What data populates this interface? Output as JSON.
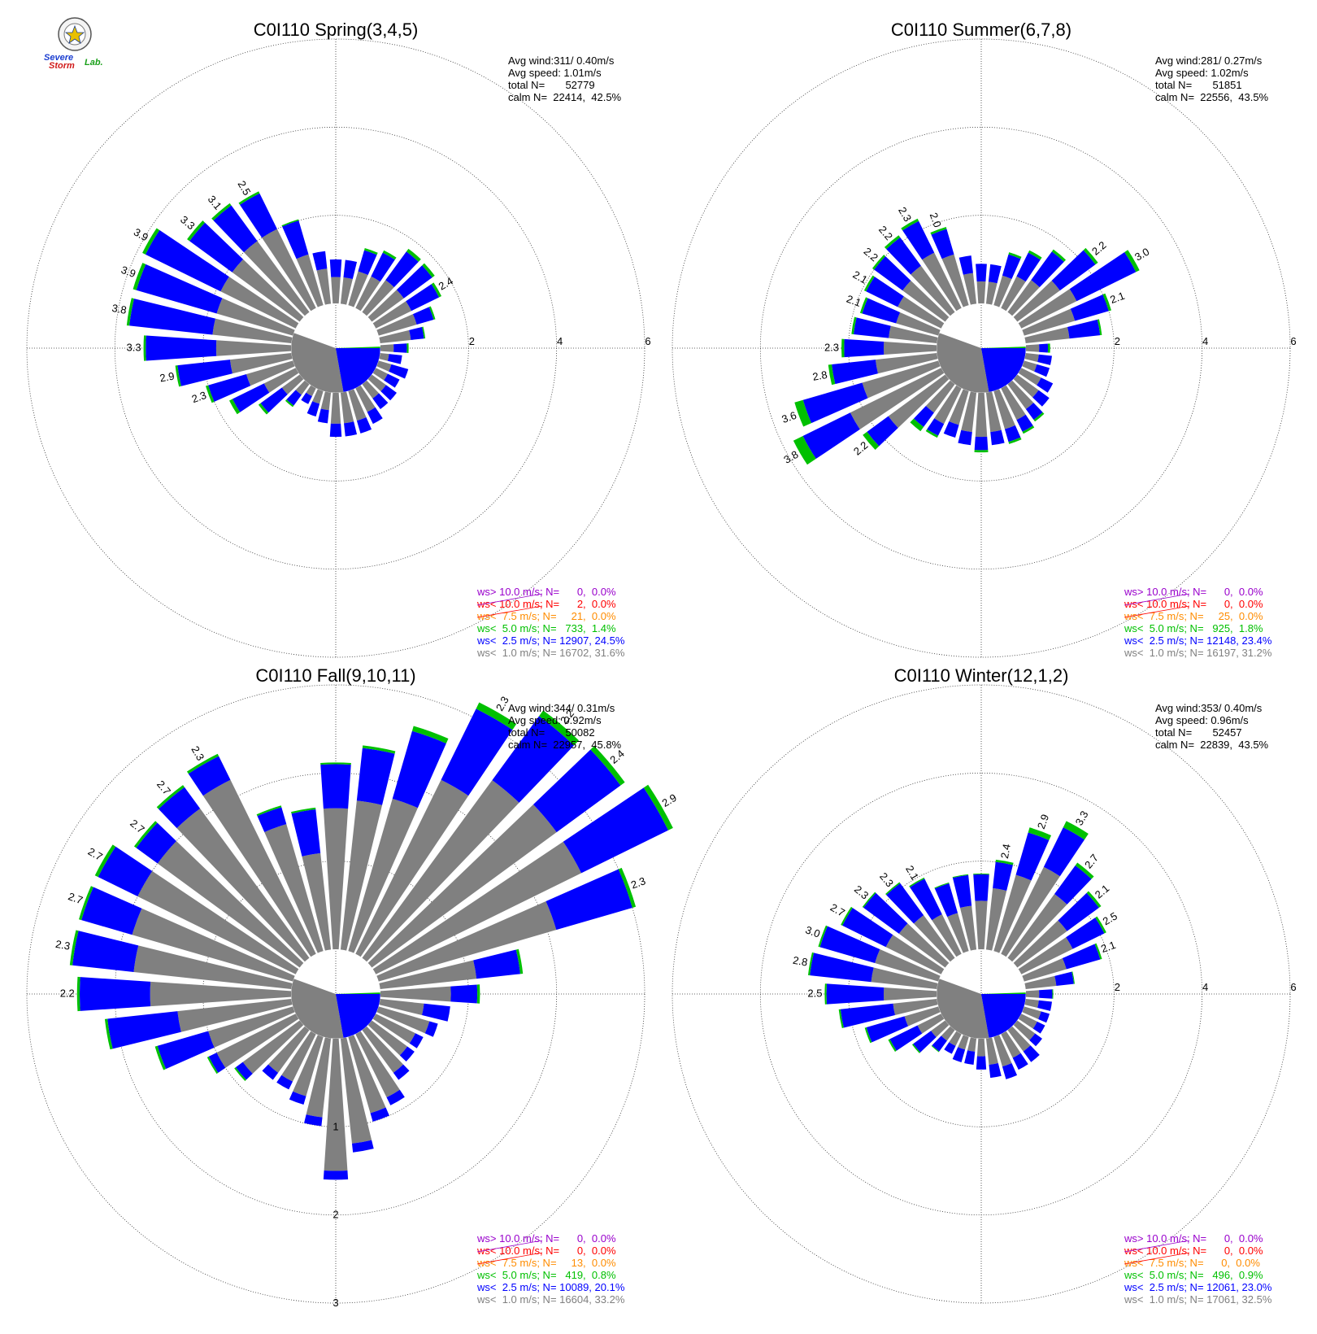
{
  "logo": {
    "line1": "Severe",
    "line2": "Storm",
    "line3": "Lab."
  },
  "colors": {
    "calm": "#808080",
    "ws1": "#808080",
    "ws25": "#0000ff",
    "ws5": "#00c000",
    "ws75": "#ff8c00",
    "ws10": "#ff0000",
    "ws10p": "#9900cc"
  },
  "chart_data": [
    {
      "type": "wind-rose",
      "title": "C0I110 Spring(3,4,5)",
      "stats": {
        "avg_wind": "Avg wind:311/ 0.40m/s",
        "avg_speed": "Avg speed: 1.01m/s",
        "total": "total N=       52779",
        "calm": "calm N=  22414,  42.5%"
      },
      "legend": [
        {
          "text": "ws> 10.0 m/s; N=      0,  0.0%",
          "color": "#9900cc"
        },
        {
          "text": "ws< 10.0 m/s; N=      2,  0.0%",
          "color": "#ff0000"
        },
        {
          "text": "ws<  7.5 m/s; N=     21,  0.0%",
          "color": "#ff8c00"
        },
        {
          "text": "ws<  5.0 m/s; N=   733,  1.4%",
          "color": "#00c000"
        },
        {
          "text": "ws<  2.5 m/s; N= 12907, 24.5%",
          "color": "#0000ff"
        },
        {
          "text": "ws<  1.0 m/s; N= 16702, 31.6%",
          "color": "#808080"
        }
      ],
      "rmax": 6,
      "ring_ticks": [
        "2",
        "4",
        "6"
      ],
      "calm_pct": 42.5,
      "directions": [
        0,
        10,
        20,
        30,
        40,
        50,
        60,
        70,
        80,
        90,
        100,
        110,
        120,
        130,
        140,
        150,
        160,
        170,
        180,
        190,
        200,
        210,
        220,
        230,
        240,
        250,
        260,
        270,
        280,
        290,
        300,
        310,
        320,
        330,
        340,
        350
      ],
      "ws1": [
        0.6,
        0.6,
        0.8,
        0.8,
        0.9,
        0.9,
        0.9,
        0.9,
        0.7,
        0.3,
        0.2,
        0.3,
        0.3,
        0.4,
        0.4,
        0.6,
        0.7,
        0.7,
        0.7,
        0.4,
        0.3,
        0.2,
        0.3,
        0.5,
        0.8,
        1.1,
        1.4,
        1.7,
        1.8,
        1.8,
        1.9,
        1.9,
        2.0,
        2.0,
        1.2,
        0.8
      ],
      "ws25": [
        0.4,
        0.4,
        0.5,
        0.6,
        0.8,
        0.8,
        0.7,
        0.4,
        0.3,
        0.3,
        0.3,
        0.4,
        0.3,
        0.3,
        0.3,
        0.3,
        0.3,
        0.3,
        0.3,
        0.3,
        0.3,
        0.2,
        0.3,
        0.6,
        0.8,
        0.9,
        1.2,
        1.6,
        1.9,
        1.9,
        1.9,
        1.2,
        1.0,
        0.9,
        0.8,
        0.4
      ],
      "ws5": [
        0,
        0,
        0.05,
        0.06,
        0.08,
        0.07,
        0.06,
        0.04,
        0.03,
        0.04,
        0,
        0,
        0,
        0,
        0,
        0,
        0,
        0,
        0,
        0,
        0,
        0,
        0.04,
        0.06,
        0.08,
        0.06,
        0.05,
        0.05,
        0.06,
        0.08,
        0.08,
        0.07,
        0.06,
        0.05,
        0.03,
        0
      ],
      "max_labels": [
        {
          "dir": 60,
          "text": "2.4"
        },
        {
          "dir": 330,
          "text": "2.5"
        },
        {
          "dir": 320,
          "text": "3.1"
        },
        {
          "dir": 310,
          "text": "3.3"
        },
        {
          "dir": 300,
          "text": "3.9"
        },
        {
          "dir": 290,
          "text": "3.9"
        },
        {
          "dir": 280,
          "text": "3.8"
        },
        {
          "dir": 270,
          "text": "3.3"
        },
        {
          "dir": 260,
          "text": "2.9"
        },
        {
          "dir": 250,
          "text": "2.3"
        }
      ]
    },
    {
      "type": "wind-rose",
      "title": "C0I110 Summer(6,7,8)",
      "stats": {
        "avg_wind": "Avg wind:281/ 0.27m/s",
        "avg_speed": "Avg speed: 1.02m/s",
        "total": "total N=       51851",
        "calm": "calm N=  22556,  43.5%"
      },
      "legend": [
        {
          "text": "ws> 10.0 m/s; N=      0,  0.0%",
          "color": "#9900cc"
        },
        {
          "text": "ws< 10.0 m/s; N=      0,  0.0%",
          "color": "#ff0000"
        },
        {
          "text": "ws<  7.5 m/s; N=     25,  0.0%",
          "color": "#ff8c00"
        },
        {
          "text": "ws<  5.0 m/s; N=   925,  1.8%",
          "color": "#00c000"
        },
        {
          "text": "ws<  2.5 m/s; N= 12148, 23.4%",
          "color": "#0000ff"
        },
        {
          "text": "ws<  1.0 m/s; N= 16197, 31.2%",
          "color": "#808080"
        }
      ],
      "rmax": 6,
      "ring_ticks": [
        "2",
        "4",
        "6"
      ],
      "calm_pct": 43.5,
      "directions": [
        0,
        10,
        20,
        30,
        40,
        50,
        60,
        70,
        80,
        90,
        100,
        110,
        120,
        130,
        140,
        150,
        160,
        170,
        180,
        190,
        200,
        210,
        220,
        230,
        240,
        250,
        260,
        270,
        280,
        290,
        300,
        310,
        320,
        330,
        340,
        350
      ],
      "ws1": [
        0.5,
        0.5,
        0.7,
        0.8,
        0.9,
        1.2,
        1.4,
        1.2,
        1.0,
        0.3,
        0.3,
        0.3,
        0.5,
        0.6,
        0.7,
        0.8,
        0.9,
        0.9,
        1.0,
        0.9,
        0.8,
        0.9,
        0.8,
        1.6,
        2.3,
        1.8,
        1.4,
        1.2,
        1.1,
        1.0,
        1.1,
        1.2,
        1.3,
        1.4,
        1.2,
        0.7
      ],
      "ws25": [
        0.4,
        0.4,
        0.5,
        0.6,
        0.8,
        1.0,
        1.5,
        0.8,
        0.7,
        0.2,
        0.3,
        0.3,
        0.3,
        0.3,
        0.3,
        0.3,
        0.3,
        0.3,
        0.3,
        0.3,
        0.3,
        0.3,
        0.4,
        0.6,
        1.2,
        1.4,
        1.0,
        0.9,
        0.8,
        0.8,
        0.8,
        0.8,
        0.8,
        0.8,
        0.6,
        0.4
      ],
      "ws5": [
        0,
        0,
        0.05,
        0.06,
        0.06,
        0.07,
        0.09,
        0.06,
        0.04,
        0.05,
        0,
        0,
        0,
        0,
        0.05,
        0.05,
        0.05,
        0,
        0.05,
        0,
        0,
        0.05,
        0.12,
        0.12,
        0.24,
        0.2,
        0.08,
        0.06,
        0.05,
        0.05,
        0.05,
        0.05,
        0.06,
        0.06,
        0.05,
        0
      ],
      "max_labels": [
        {
          "dir": 50,
          "text": "2.2"
        },
        {
          "dir": 60,
          "text": "3.0"
        },
        {
          "dir": 70,
          "text": "2.1"
        },
        {
          "dir": 340,
          "text": "2.0"
        },
        {
          "dir": 330,
          "text": "2.3"
        },
        {
          "dir": 320,
          "text": "2.2"
        },
        {
          "dir": 310,
          "text": "2.2"
        },
        {
          "dir": 300,
          "text": "2.1"
        },
        {
          "dir": 290,
          "text": "2.1"
        },
        {
          "dir": 270,
          "text": "2.3"
        },
        {
          "dir": 260,
          "text": "2.8"
        },
        {
          "dir": 250,
          "text": "3.6"
        },
        {
          "dir": 240,
          "text": "3.8"
        },
        {
          "dir": 230,
          "text": "2.2"
        }
      ]
    },
    {
      "type": "wind-rose",
      "title": "C0I110 Fall(9,10,11)",
      "stats": {
        "avg_wind": "Avg wind:344/ 0.31m/s",
        "avg_speed": "Avg speed: 0.92m/s",
        "total": "total N=       50082",
        "calm": "calm N=  22957,  45.8%"
      },
      "legend": [
        {
          "text": "ws> 10.0 m/s; N=      0,  0.0%",
          "color": "#9900cc"
        },
        {
          "text": "ws< 10.0 m/s; N=      0,  0.0%",
          "color": "#ff0000"
        },
        {
          "text": "ws<  7.5 m/s; N=     13,  0.0%",
          "color": "#ff8c00"
        },
        {
          "text": "ws<  5.0 m/s; N=   419,  0.8%",
          "color": "#00c000"
        },
        {
          "text": "ws<  2.5 m/s; N= 10089, 20.1%",
          "color": "#0000ff"
        },
        {
          "text": "ws<  1.0 m/s; N= 16604, 33.2%",
          "color": "#808080"
        }
      ],
      "rmax": 3,
      "ring_ticks": [
        "1",
        "2",
        "3"
      ],
      "tick_axis": "south",
      "calm_pct": 45.8,
      "directions": [
        0,
        10,
        20,
        30,
        40,
        50,
        60,
        70,
        80,
        90,
        100,
        110,
        120,
        130,
        140,
        150,
        160,
        170,
        180,
        190,
        200,
        210,
        220,
        230,
        240,
        250,
        260,
        270,
        280,
        290,
        300,
        310,
        320,
        330,
        340,
        350
      ],
      "ws1": [
        1.6,
        1.7,
        1.8,
        2.2,
        2.5,
        2.6,
        2.6,
        2.1,
        1.1,
        0.8,
        0.5,
        0.6,
        0.5,
        0.5,
        0.6,
        0.8,
        0.9,
        1.2,
        1.5,
        0.9,
        0.7,
        0.6,
        0.6,
        0.8,
        1.0,
        1.0,
        1.3,
        1.6,
        1.8,
        1.9,
        2.0,
        2.0,
        2.1,
        2.2,
        1.5,
        1.1
      ],
      "ws25": [
        0.5,
        0.6,
        0.8,
        0.9,
        0.9,
        0.9,
        1.1,
        0.9,
        0.5,
        0.3,
        0.3,
        0.1,
        0.1,
        0.1,
        0.1,
        0.1,
        0.1,
        0.1,
        0.1,
        0.1,
        0.1,
        0.1,
        0.1,
        0.1,
        0.1,
        0.6,
        0.8,
        0.8,
        0.7,
        0.6,
        0.5,
        0.3,
        0.3,
        0.3,
        0.2,
        0.5
      ],
      "ws5": [
        0.02,
        0.03,
        0.06,
        0.08,
        0.08,
        0.06,
        0.06,
        0.04,
        0.03,
        0.03,
        0,
        0,
        0,
        0,
        0,
        0,
        0,
        0,
        0,
        0,
        0,
        0,
        0,
        0.02,
        0.02,
        0.03,
        0.03,
        0.03,
        0.03,
        0.03,
        0.04,
        0.03,
        0.03,
        0.03,
        0.02,
        0.02
      ],
      "max_labels": [
        {
          "dir": 30,
          "text": "2.3"
        },
        {
          "dir": 40,
          "text": "2.2"
        },
        {
          "dir": 50,
          "text": "2.4"
        },
        {
          "dir": 60,
          "text": "2.9"
        },
        {
          "dir": 70,
          "text": "2.3"
        },
        {
          "dir": 330,
          "text": "2.3"
        },
        {
          "dir": 320,
          "text": "2.7"
        },
        {
          "dir": 310,
          "text": "2.7"
        },
        {
          "dir": 300,
          "text": "2.7"
        },
        {
          "dir": 290,
          "text": "2.7"
        },
        {
          "dir": 280,
          "text": "2.3"
        },
        {
          "dir": 270,
          "text": "2.2"
        }
      ]
    },
    {
      "type": "wind-rose",
      "title": "C0I110 Winter(12,1,2)",
      "stats": {
        "avg_wind": "Avg wind:353/ 0.40m/s",
        "avg_speed": "Avg speed: 0.96m/s",
        "total": "total N=       52457",
        "calm": "calm N=  22839,  43.5%"
      },
      "legend": [
        {
          "text": "ws> 10.0 m/s; N=      0,  0.0%",
          "color": "#9900cc"
        },
        {
          "text": "ws< 10.0 m/s; N=      0,  0.0%",
          "color": "#ff0000"
        },
        {
          "text": "ws<  7.5 m/s; N=      0,  0.0%",
          "color": "#ff8c00"
        },
        {
          "text": "ws<  5.0 m/s; N=   496,  0.9%",
          "color": "#00c000"
        },
        {
          "text": "ws<  2.5 m/s; N= 12061, 23.0%",
          "color": "#0000ff"
        },
        {
          "text": "ws<  1.0 m/s; N= 17061, 32.5%",
          "color": "#808080"
        }
      ],
      "rmax": 6,
      "ring_ticks": [
        "2",
        "4",
        "6"
      ],
      "calm_pct": 43.5,
      "directions": [
        0,
        10,
        20,
        30,
        40,
        50,
        60,
        70,
        80,
        90,
        100,
        110,
        120,
        130,
        140,
        150,
        160,
        170,
        180,
        190,
        200,
        210,
        220,
        230,
        240,
        250,
        260,
        270,
        280,
        290,
        300,
        310,
        320,
        330,
        340,
        350
      ],
      "ws1": [
        1.1,
        1.4,
        1.8,
        2.2,
        1.8,
        1.4,
        1.3,
        1.0,
        0.7,
        0.3,
        0.3,
        0.4,
        0.4,
        0.5,
        0.6,
        0.6,
        0.7,
        0.6,
        0.4,
        0.3,
        0.3,
        0.3,
        0.3,
        0.4,
        0.6,
        0.8,
        1.0,
        1.2,
        1.5,
        1.5,
        1.4,
        1.3,
        1.2,
        1.0,
        0.9,
        1.0
      ],
      "ws25": [
        0.6,
        0.6,
        1.0,
        1.0,
        0.8,
        0.9,
        0.8,
        0.8,
        0.4,
        0.3,
        0.3,
        0.2,
        0.2,
        0.2,
        0.3,
        0.3,
        0.3,
        0.3,
        0.3,
        0.3,
        0.3,
        0.2,
        0.3,
        0.5,
        0.7,
        0.9,
        1.2,
        1.3,
        1.4,
        1.3,
        1.1,
        1.0,
        0.9,
        0.9,
        0.7,
        0.7
      ],
      "ws5": [
        0.02,
        0.05,
        0.12,
        0.16,
        0.08,
        0.06,
        0.05,
        0.04,
        0.02,
        0.02,
        0,
        0,
        0,
        0,
        0,
        0,
        0,
        0,
        0,
        0,
        0,
        0,
        0.02,
        0.03,
        0.04,
        0.04,
        0.04,
        0.04,
        0.04,
        0.04,
        0.04,
        0.03,
        0.03,
        0.03,
        0.02,
        0.02
      ],
      "max_labels": [
        {
          "dir": 10,
          "text": "2.4"
        },
        {
          "dir": 20,
          "text": "2.9"
        },
        {
          "dir": 30,
          "text": "3.3"
        },
        {
          "dir": 40,
          "text": "2.7"
        },
        {
          "dir": 50,
          "text": "2.1"
        },
        {
          "dir": 60,
          "text": "2.5"
        },
        {
          "dir": 70,
          "text": "2.1"
        },
        {
          "dir": 330,
          "text": "2.1"
        },
        {
          "dir": 320,
          "text": "2.3"
        },
        {
          "dir": 310,
          "text": "2.3"
        },
        {
          "dir": 300,
          "text": "2.7"
        },
        {
          "dir": 290,
          "text": "3.0"
        },
        {
          "dir": 280,
          "text": "2.8"
        },
        {
          "dir": 270,
          "text": "2.5"
        }
      ]
    }
  ]
}
